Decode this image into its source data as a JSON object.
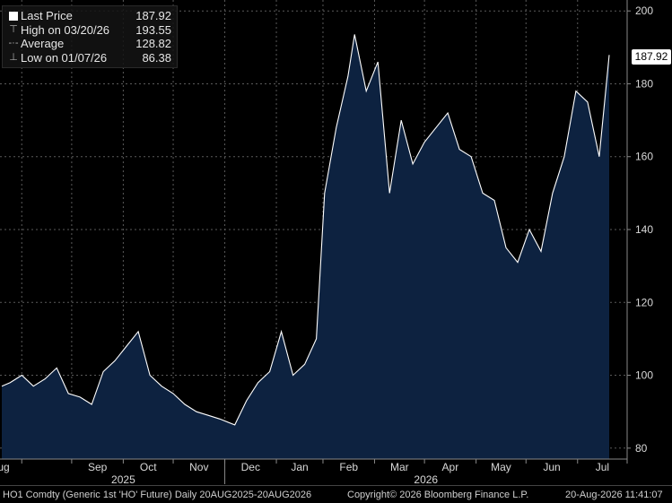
{
  "legend": {
    "last_price_label": "Last Price",
    "last_price_value": "187.92",
    "high_label": "High on 03/20/26",
    "high_value": "193.55",
    "avg_label": "Average",
    "avg_value": "128.82",
    "low_label": "Low on 01/07/26",
    "low_value": "86.38"
  },
  "last_tag": "187.92",
  "footer": {
    "left": "HO1 Comdty (Generic 1st 'HO' Future) Daily 20AUG2025-20AUG2026",
    "center": "Copyright© 2026 Bloomberg Finance L.P.",
    "right": "20-Aug-2026 11:41:07"
  },
  "colors": {
    "fill": "#0d2240",
    "line": "#ffffff",
    "grid": "#5a5a5a",
    "background": "#000000"
  },
  "chart_data": {
    "type": "area",
    "ylim": [
      77,
      203
    ],
    "y_ticks": [
      80,
      100,
      120,
      140,
      160,
      180,
      200
    ],
    "month_labels": [
      "Sep",
      "Oct",
      "Nov",
      "Dec",
      "Jan",
      "Feb",
      "Mar",
      "Apr",
      "May",
      "Jun",
      "Jul",
      "Aug"
    ],
    "year_labels": [
      "2025",
      "2026"
    ],
    "grid": true,
    "x": [
      "2025-08-20",
      "2025-08-25",
      "2025-09-01",
      "2025-09-08",
      "2025-09-15",
      "2025-09-22",
      "2025-09-29",
      "2025-10-06",
      "2025-10-13",
      "2025-10-20",
      "2025-10-27",
      "2025-11-03",
      "2025-11-10",
      "2025-11-17",
      "2025-11-24",
      "2025-12-01",
      "2025-12-08",
      "2025-12-15",
      "2025-12-22",
      "2025-12-29",
      "2026-01-07",
      "2026-01-14",
      "2026-01-21",
      "2026-01-28",
      "2026-02-04",
      "2026-02-11",
      "2026-02-18",
      "2026-02-25",
      "2026-03-02",
      "2026-03-09",
      "2026-03-16",
      "2026-03-20",
      "2026-03-27",
      "2026-04-03",
      "2026-04-10",
      "2026-04-17",
      "2026-04-24",
      "2026-05-01",
      "2026-05-08",
      "2026-05-15",
      "2026-05-22",
      "2026-05-29",
      "2026-06-05",
      "2026-06-12",
      "2026-06-19",
      "2026-06-26",
      "2026-07-03",
      "2026-07-10",
      "2026-07-17",
      "2026-07-24",
      "2026-07-31",
      "2026-08-07",
      "2026-08-14",
      "2026-08-20"
    ],
    "series": [
      {
        "values": [
          97,
          98,
          100,
          97,
          99,
          102,
          95,
          94,
          92,
          101,
          104,
          108,
          112,
          100,
          97,
          95,
          92,
          90,
          89,
          88,
          86.38,
          93,
          98,
          101,
          112,
          100,
          103,
          110,
          150,
          168,
          182,
          193.55,
          178,
          186,
          150,
          170,
          158,
          164,
          168,
          172,
          162,
          160,
          150,
          148,
          135,
          131,
          140,
          134,
          150,
          160,
          178,
          175,
          160,
          187.92
        ]
      }
    ]
  }
}
